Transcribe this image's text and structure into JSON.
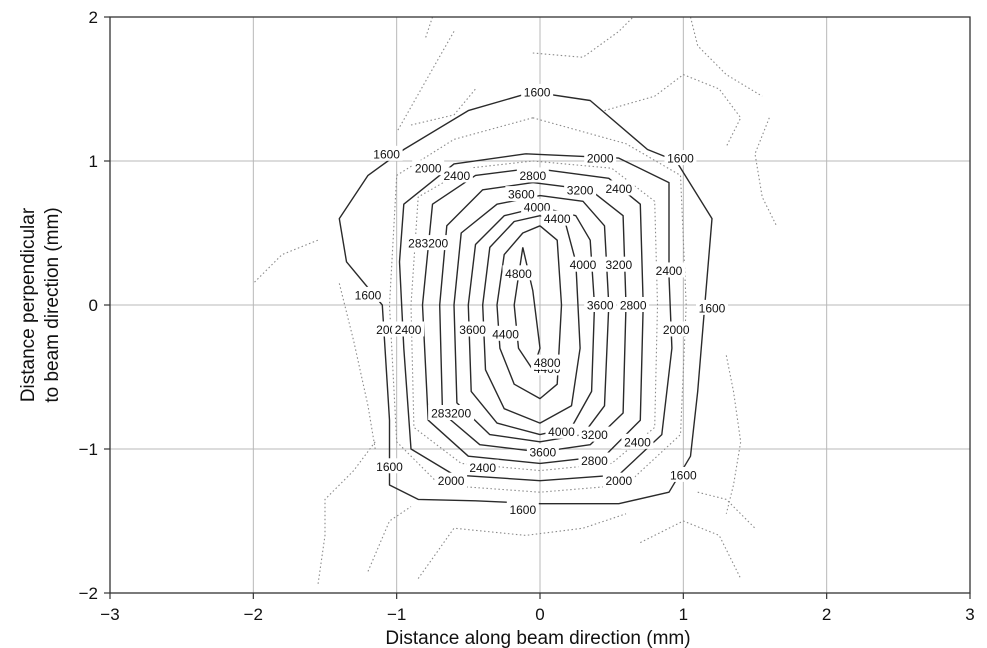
{
  "chart_data": {
    "type": "contour",
    "xlabel": "Distance along beam direction (mm)",
    "ylabel_line1": "Distance perpendicular",
    "ylabel_line2": "to beam direction (mm)",
    "xlim": [
      -3,
      3
    ],
    "ylim": [
      -2,
      2
    ],
    "x_ticks": [
      -3,
      -2,
      -1,
      0,
      1,
      2,
      3
    ],
    "y_ticks": [
      -2,
      -1,
      0,
      1,
      2
    ],
    "x_tick_labels": [
      "−3",
      "−2",
      "−1",
      "0",
      "1",
      "2",
      "3"
    ],
    "y_tick_labels": [
      "−2",
      "−1",
      "0",
      "1",
      "2"
    ],
    "grid": true,
    "contour_levels": [
      1600,
      2000,
      2400,
      2800,
      3200,
      3600,
      4000,
      4400,
      4800
    ],
    "contours": [
      {
        "level": 1600,
        "style": "solid",
        "points": [
          [
            -0.05,
            1.48
          ],
          [
            0.35,
            1.42
          ],
          [
            0.75,
            1.08
          ],
          [
            0.95,
            1.0
          ],
          [
            1.2,
            0.6
          ],
          [
            1.15,
            0.0
          ],
          [
            1.1,
            -0.6
          ],
          [
            1.05,
            -1.05
          ],
          [
            0.9,
            -1.3
          ],
          [
            0.55,
            -1.38
          ],
          [
            0,
            -1.38
          ],
          [
            -0.45,
            -1.36
          ],
          [
            -0.85,
            -1.35
          ],
          [
            -1.05,
            -1.25
          ],
          [
            -1.05,
            -0.8
          ],
          [
            -1.1,
            0.0
          ],
          [
            -1.35,
            0.3
          ],
          [
            -1.4,
            0.6
          ],
          [
            -1.2,
            0.9
          ],
          [
            -0.95,
            1.08
          ],
          [
            -0.5,
            1.35
          ],
          [
            -0.05,
            1.48
          ]
        ]
      },
      {
        "level": 2000,
        "style": "dotted",
        "points": [
          [
            -0.05,
            1.3
          ],
          [
            0.6,
            1.12
          ],
          [
            0.98,
            0.9
          ],
          [
            1.02,
            0.0
          ],
          [
            0.98,
            -0.9
          ],
          [
            0.6,
            -1.25
          ],
          [
            0,
            -1.3
          ],
          [
            -0.7,
            -1.25
          ],
          [
            -1.0,
            -0.95
          ],
          [
            -1.05,
            0.0
          ],
          [
            -1.0,
            0.9
          ],
          [
            -0.6,
            1.15
          ],
          [
            -0.05,
            1.3
          ]
        ]
      },
      {
        "level": 2000,
        "style": "solid",
        "points": [
          [
            -0.1,
            1.05
          ],
          [
            0.55,
            1.02
          ],
          [
            0.9,
            0.85
          ],
          [
            0.9,
            0.2
          ],
          [
            0.92,
            -0.3
          ],
          [
            0.85,
            -0.9
          ],
          [
            0.55,
            -1.18
          ],
          [
            0,
            -1.22
          ],
          [
            -0.6,
            -1.18
          ],
          [
            -0.9,
            -1.0
          ],
          [
            -0.95,
            -0.3
          ],
          [
            -0.98,
            0.3
          ],
          [
            -0.95,
            0.7
          ],
          [
            -0.6,
            0.98
          ],
          [
            -0.1,
            1.05
          ]
        ]
      },
      {
        "level": 2400,
        "style": "dotted",
        "points": [
          [
            -0.05,
            1.0
          ],
          [
            0.5,
            0.95
          ],
          [
            0.8,
            0.72
          ],
          [
            0.82,
            0.0
          ],
          [
            0.8,
            -0.85
          ],
          [
            0.5,
            -1.1
          ],
          [
            0,
            -1.15
          ],
          [
            -0.55,
            -1.1
          ],
          [
            -0.88,
            -0.85
          ],
          [
            -0.9,
            0.0
          ],
          [
            -0.85,
            0.75
          ],
          [
            -0.5,
            0.95
          ],
          [
            -0.05,
            1.0
          ]
        ]
      },
      {
        "level": 2400,
        "style": "solid",
        "points": [
          [
            -0.05,
            0.95
          ],
          [
            0.48,
            0.88
          ],
          [
            0.7,
            0.7
          ],
          [
            0.72,
            0.0
          ],
          [
            0.7,
            -0.8
          ],
          [
            0.45,
            -1.05
          ],
          [
            0,
            -1.1
          ],
          [
            -0.5,
            -1.05
          ],
          [
            -0.78,
            -0.8
          ],
          [
            -0.82,
            0.0
          ],
          [
            -0.75,
            0.7
          ],
          [
            -0.45,
            0.9
          ],
          [
            -0.05,
            0.95
          ]
        ]
      },
      {
        "level": 2800,
        "style": "solid",
        "points": [
          [
            -0.05,
            0.85
          ],
          [
            0.35,
            0.8
          ],
          [
            0.58,
            0.62
          ],
          [
            0.6,
            0.0
          ],
          [
            0.58,
            -0.75
          ],
          [
            0.35,
            -0.97
          ],
          [
            0,
            -1.02
          ],
          [
            -0.42,
            -0.97
          ],
          [
            -0.68,
            -0.75
          ],
          [
            -0.7,
            0.0
          ],
          [
            -0.65,
            0.55
          ],
          [
            -0.4,
            0.8
          ],
          [
            -0.05,
            0.85
          ]
        ]
      },
      {
        "level": 3200,
        "style": "solid",
        "points": [
          [
            0,
            0.76
          ],
          [
            0.3,
            0.72
          ],
          [
            0.45,
            0.55
          ],
          [
            0.48,
            0.0
          ],
          [
            0.45,
            -0.7
          ],
          [
            0.3,
            -0.9
          ],
          [
            0,
            -0.95
          ],
          [
            -0.35,
            -0.9
          ],
          [
            -0.58,
            -0.68
          ],
          [
            -0.6,
            0.0
          ],
          [
            -0.55,
            0.5
          ],
          [
            -0.3,
            0.7
          ],
          [
            0,
            0.76
          ]
        ]
      },
      {
        "level": 3600,
        "style": "solid",
        "points": [
          [
            0,
            0.68
          ],
          [
            0.25,
            0.62
          ],
          [
            0.35,
            0.45
          ],
          [
            0.38,
            0.0
          ],
          [
            0.36,
            -0.6
          ],
          [
            0.22,
            -0.85
          ],
          [
            0,
            -0.9
          ],
          [
            -0.3,
            -0.82
          ],
          [
            -0.48,
            -0.6
          ],
          [
            -0.5,
            0.0
          ],
          [
            -0.45,
            0.42
          ],
          [
            -0.25,
            0.62
          ],
          [
            0,
            0.68
          ]
        ]
      },
      {
        "level": 4000,
        "style": "solid",
        "points": [
          [
            0,
            0.62
          ],
          [
            0.18,
            0.56
          ],
          [
            0.25,
            0.3
          ],
          [
            0.28,
            -0.3
          ],
          [
            0.22,
            -0.7
          ],
          [
            0,
            -0.82
          ],
          [
            -0.25,
            -0.72
          ],
          [
            -0.38,
            -0.45
          ],
          [
            -0.4,
            0.0
          ],
          [
            -0.35,
            0.4
          ],
          [
            -0.18,
            0.58
          ],
          [
            0,
            0.62
          ]
        ]
      },
      {
        "level": 4400,
        "style": "solid",
        "points": [
          [
            0,
            0.55
          ],
          [
            0.12,
            0.45
          ],
          [
            0.15,
            0.0
          ],
          [
            0.12,
            -0.55
          ],
          [
            0,
            -0.65
          ],
          [
            -0.18,
            -0.55
          ],
          [
            -0.28,
            -0.3
          ],
          [
            -0.3,
            0.0
          ],
          [
            -0.25,
            0.35
          ],
          [
            -0.12,
            0.5
          ],
          [
            0,
            0.55
          ]
        ]
      },
      {
        "level": 4800,
        "style": "solid",
        "points": [
          [
            -0.12,
            0.4
          ],
          [
            -0.05,
            0.1
          ],
          [
            0.0,
            -0.3
          ],
          [
            -0.05,
            -0.45
          ],
          [
            -0.15,
            -0.3
          ],
          [
            -0.18,
            0.0
          ],
          [
            -0.12,
            0.4
          ]
        ]
      },
      {
        "level": null,
        "style": "dotted",
        "points": [
          [
            -0.6,
            1.9
          ],
          [
            -0.8,
            1.55
          ],
          [
            -1.0,
            1.2
          ]
        ]
      },
      {
        "level": null,
        "style": "dotted",
        "points": [
          [
            -0.75,
            2.0
          ],
          [
            -0.8,
            1.85
          ]
        ]
      },
      {
        "level": null,
        "style": "dotted",
        "points": [
          [
            -0.9,
            1.25
          ],
          [
            -0.6,
            1.32
          ],
          [
            -0.45,
            1.5
          ]
        ]
      },
      {
        "level": null,
        "style": "dotted",
        "points": [
          [
            0.45,
            1.35
          ],
          [
            0.8,
            1.45
          ],
          [
            1.0,
            1.6
          ],
          [
            1.25,
            1.5
          ],
          [
            1.4,
            1.3
          ],
          [
            1.3,
            1.1
          ]
        ]
      },
      {
        "level": null,
        "style": "dotted",
        "points": [
          [
            -0.05,
            1.75
          ],
          [
            0.3,
            1.72
          ],
          [
            0.55,
            1.9
          ],
          [
            0.65,
            2.0
          ]
        ]
      },
      {
        "level": null,
        "style": "dotted",
        "points": [
          [
            1.05,
            2.0
          ],
          [
            1.1,
            1.8
          ],
          [
            1.3,
            1.6
          ],
          [
            1.55,
            1.45
          ]
        ]
      },
      {
        "level": null,
        "style": "dotted",
        "points": [
          [
            1.6,
            1.3
          ],
          [
            1.5,
            1.05
          ],
          [
            1.55,
            0.75
          ],
          [
            1.65,
            0.55
          ]
        ]
      },
      {
        "level": null,
        "style": "dotted",
        "points": [
          [
            -1.55,
            0.45
          ],
          [
            -1.8,
            0.35
          ],
          [
            -2.0,
            0.15
          ]
        ]
      },
      {
        "level": null,
        "style": "dotted",
        "points": [
          [
            -1.4,
            0.15
          ],
          [
            -1.3,
            -0.25
          ],
          [
            -1.2,
            -0.7
          ],
          [
            -1.15,
            -1.0
          ]
        ]
      },
      {
        "level": null,
        "style": "dotted",
        "points": [
          [
            -1.15,
            -0.95
          ],
          [
            -1.3,
            -1.15
          ],
          [
            -1.5,
            -1.35
          ],
          [
            -1.5,
            -1.6
          ],
          [
            -1.55,
            -1.95
          ]
        ]
      },
      {
        "level": null,
        "style": "dotted",
        "points": [
          [
            -1.2,
            -1.85
          ],
          [
            -1.05,
            -1.5
          ],
          [
            -0.9,
            -1.4
          ]
        ]
      },
      {
        "level": null,
        "style": "dotted",
        "points": [
          [
            -0.85,
            -1.9
          ],
          [
            -0.6,
            -1.55
          ],
          [
            -0.1,
            -1.6
          ],
          [
            0.3,
            -1.55
          ],
          [
            0.6,
            -1.45
          ]
        ]
      },
      {
        "level": null,
        "style": "dotted",
        "points": [
          [
            0.7,
            -1.65
          ],
          [
            1.0,
            -1.5
          ],
          [
            1.25,
            -1.6
          ],
          [
            1.4,
            -1.9
          ]
        ]
      },
      {
        "level": null,
        "style": "dotted",
        "points": [
          [
            1.3,
            -0.35
          ],
          [
            1.35,
            -0.6
          ],
          [
            1.4,
            -0.95
          ],
          [
            1.35,
            -1.25
          ],
          [
            1.3,
            -1.45
          ]
        ]
      },
      {
        "level": null,
        "style": "dotted",
        "points": [
          [
            1.1,
            -1.3
          ],
          [
            1.3,
            -1.35
          ],
          [
            1.5,
            -1.55
          ]
        ]
      }
    ],
    "contour_labels": [
      {
        "text": "1600",
        "x": -0.02,
        "y": 1.48
      },
      {
        "text": "1600",
        "x": -1.07,
        "y": 1.05
      },
      {
        "text": "1600",
        "x": 0.98,
        "y": 1.02
      },
      {
        "text": "1600",
        "x": -1.2,
        "y": 0.07
      },
      {
        "text": "1600",
        "x": 1.2,
        "y": -0.02
      },
      {
        "text": "1600",
        "x": -1.05,
        "y": -1.12
      },
      {
        "text": "1600",
        "x": 1.0,
        "y": -1.18
      },
      {
        "text": "1600",
        "x": -0.12,
        "y": -1.42
      },
      {
        "text": "2000",
        "x": -0.78,
        "y": 0.95
      },
      {
        "text": "2000",
        "x": 0.42,
        "y": 1.02
      },
      {
        "text": "2000",
        "x": -1.05,
        "y": -0.17
      },
      {
        "text": "2000",
        "x": 0.95,
        "y": -0.17
      },
      {
        "text": "2000",
        "x": -0.62,
        "y": -1.22
      },
      {
        "text": "2000",
        "x": 0.55,
        "y": -1.22
      },
      {
        "text": "2400",
        "x": -0.58,
        "y": 0.9
      },
      {
        "text": "2400",
        "x": 0.55,
        "y": 0.81
      },
      {
        "text": "2400",
        "x": 0.9,
        "y": 0.24
      },
      {
        "text": "2400",
        "x": -0.92,
        "y": -0.17
      },
      {
        "text": "2400",
        "x": -0.4,
        "y": -1.13
      },
      {
        "text": "2400",
        "x": 0.68,
        "y": -0.95
      },
      {
        "text": "2800",
        "x": -0.05,
        "y": 0.9
      },
      {
        "text": "2800",
        "x": 0.65,
        "y": 0.0
      },
      {
        "text": "2800",
        "x": 0.38,
        "y": -1.08
      },
      {
        "text": "283200",
        "x": -0.78,
        "y": 0.43
      },
      {
        "text": "283200",
        "x": -0.62,
        "y": -0.75
      },
      {
        "text": "3200",
        "x": 0.28,
        "y": 0.8
      },
      {
        "text": "3200",
        "x": 0.55,
        "y": 0.28
      },
      {
        "text": "3200",
        "x": 0.38,
        "y": -0.9
      },
      {
        "text": "3600",
        "x": -0.13,
        "y": 0.77
      },
      {
        "text": "3600",
        "x": -0.47,
        "y": -0.17
      },
      {
        "text": "3600",
        "x": 0.42,
        "y": 0.0
      },
      {
        "text": "3600",
        "x": 0.02,
        "y": -1.02
      },
      {
        "text": "4000",
        "x": -0.02,
        "y": 0.68
      },
      {
        "text": "4000",
        "x": 0.3,
        "y": 0.28
      },
      {
        "text": "4000",
        "x": 0.15,
        "y": -0.88
      },
      {
        "text": "4400",
        "x": 0.12,
        "y": 0.6
      },
      {
        "text": "4400",
        "x": -0.24,
        "y": -0.2
      },
      {
        "text": "4400",
        "x": 0.05,
        "y": -0.44
      },
      {
        "text": "4800",
        "x": -0.15,
        "y": 0.22
      },
      {
        "text": "4800",
        "x": 0.05,
        "y": -0.4
      }
    ]
  }
}
